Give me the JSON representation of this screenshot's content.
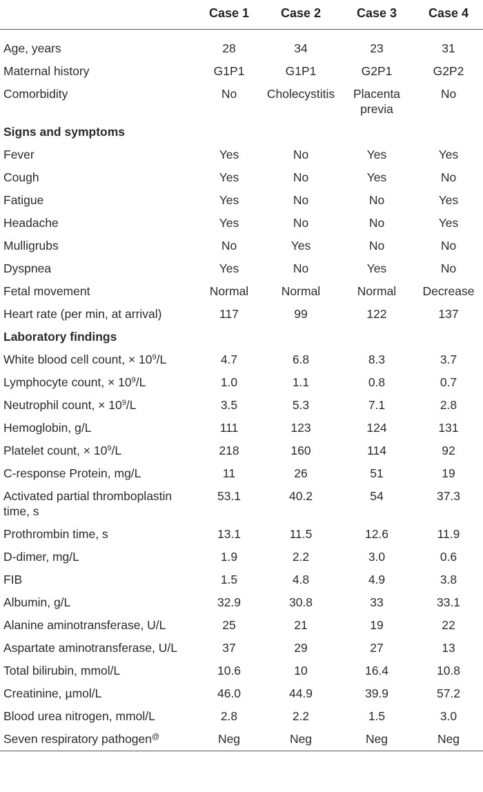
{
  "header": {
    "blank": "",
    "cases": [
      "Case 1",
      "Case 2",
      "Case 3",
      "Case 4"
    ]
  },
  "demographics": [
    {
      "label": "Age, years",
      "values": [
        "28",
        "34",
        "23",
        "31"
      ]
    },
    {
      "label": "Maternal history",
      "values": [
        "G1P1",
        "G1P1",
        "G2P1",
        "G2P2"
      ]
    },
    {
      "label": "Comorbidity",
      "values": [
        "No",
        "Cholecystitis",
        "Placenta previa",
        "No"
      ]
    }
  ],
  "sections": {
    "signs": "Signs and symptoms",
    "lab": "Laboratory findings"
  },
  "signs": [
    {
      "label": "Fever",
      "values": [
        "Yes",
        "No",
        "Yes",
        "Yes"
      ]
    },
    {
      "label": "Cough",
      "values": [
        "Yes",
        "No",
        "Yes",
        "No"
      ]
    },
    {
      "label": "Fatigue",
      "values": [
        "Yes",
        "No",
        "No",
        "Yes"
      ]
    },
    {
      "label": "Headache",
      "values": [
        "Yes",
        "No",
        "No",
        "Yes"
      ]
    },
    {
      "label": "Mulligrubs",
      "values": [
        "No",
        "Yes",
        "No",
        "No"
      ]
    },
    {
      "label": "Dyspnea",
      "values": [
        "Yes",
        "No",
        "Yes",
        "No"
      ]
    },
    {
      "label": "Fetal movement",
      "values": [
        "Normal",
        "Normal",
        "Normal",
        "Decrease"
      ]
    },
    {
      "label": "Heart rate (per min, at arrival)",
      "values": [
        "117",
        "99",
        "122",
        "137"
      ]
    }
  ],
  "lab": [
    {
      "label": "White blood cell count, × 10",
      "sup": "9",
      "suffix": "/L",
      "values": [
        "4.7",
        "6.8",
        "8.3",
        "3.7"
      ]
    },
    {
      "label": "Lymphocyte count, × 10",
      "sup": "9",
      "suffix": "/L",
      "values": [
        "1.0",
        "1.1",
        "0.8",
        "0.7"
      ]
    },
    {
      "label": "Neutrophil count, × 10",
      "sup": "9",
      "suffix": "/L",
      "values": [
        "3.5",
        "5.3",
        "7.1",
        "2.8"
      ]
    },
    {
      "label": "Hemoglobin, g/L",
      "values": [
        "111",
        "123",
        "124",
        "131"
      ]
    },
    {
      "label": "Platelet count, × 10",
      "sup": "9",
      "suffix": "/L",
      "values": [
        "218",
        "160",
        "114",
        "92"
      ]
    },
    {
      "label": "C-response Protein, mg/L",
      "values": [
        "11",
        "26",
        "51",
        "19"
      ]
    },
    {
      "label": "Activated partial thromboplastin time, s",
      "values": [
        "53.1",
        "40.2",
        "54",
        "37.3"
      ]
    },
    {
      "label": "Prothrombin time, s",
      "values": [
        "13.1",
        "11.5",
        "12.6",
        "11.9"
      ]
    },
    {
      "label": "D-dimer, mg/L",
      "values": [
        "1.9",
        "2.2",
        "3.0",
        "0.6"
      ]
    },
    {
      "label": "FIB",
      "values": [
        "1.5",
        "4.8",
        "4.9",
        "3.8"
      ]
    },
    {
      "label": "Albumin, g/L",
      "values": [
        "32.9",
        "30.8",
        "33",
        "33.1"
      ]
    },
    {
      "label": "Alanine aminotransferase, U/L",
      "values": [
        "25",
        "21",
        "19",
        "22"
      ]
    },
    {
      "label": "Aspartate aminotransferase, U/L",
      "values": [
        "37",
        "29",
        "27",
        "13"
      ]
    },
    {
      "label": "Total bilirubin, mmol/L",
      "values": [
        "10.6",
        "10",
        "16.4",
        "10.8"
      ]
    },
    {
      "label": "Creatinine, µmol/L",
      "values": [
        "46.0",
        "44.9",
        "39.9",
        "57.2"
      ]
    },
    {
      "label": "Blood urea nitrogen, mmol/L",
      "values": [
        "2.8",
        "2.2",
        "1.5",
        "3.0"
      ]
    },
    {
      "label": "Seven respiratory pathogen",
      "sup": "@",
      "suffix": "",
      "values": [
        "Neg",
        "Neg",
        "Neg",
        "Neg"
      ]
    }
  ]
}
